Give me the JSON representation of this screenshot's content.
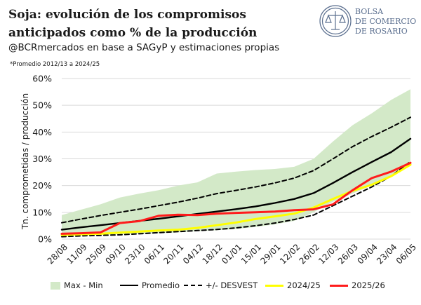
{
  "header": {
    "title": "Soja: evolución de los compromisos anticipados como % de la producción",
    "subtitle": "@BCRmercados en base a SAGyP y estimaciones propias",
    "note": "*Promedio 2012/13 a 2024/25"
  },
  "logo": {
    "line1": "BOLSA",
    "line2": "DE COMERCIO",
    "line3": "DE ROSARIO",
    "color": "#5b6f8f"
  },
  "chart_data": {
    "type": "line",
    "ylabel": "Tn. comprometidas / producción",
    "xlabel": "",
    "ylim": [
      0,
      0.6
    ],
    "yticks": [
      0,
      0.1,
      0.2,
      0.3,
      0.4,
      0.5,
      0.6
    ],
    "ytick_labels": [
      "0%",
      "10%",
      "20%",
      "30%",
      "40%",
      "50%",
      "60%"
    ],
    "grid": true,
    "legend_position": "bottom",
    "categories": [
      "28/08",
      "11/09",
      "25/09",
      "09/10",
      "23/10",
      "06/11",
      "20/11",
      "04/12",
      "18/12",
      "01/01",
      "15/01",
      "29/01",
      "12/02",
      "26/02",
      "12/03",
      "26/03",
      "09/04",
      "23/04",
      "06/05"
    ],
    "band": {
      "name": "Max - Min",
      "color": "#d3e9c8",
      "max": [
        0.09,
        0.11,
        0.13,
        0.155,
        0.17,
        0.183,
        0.2,
        0.212,
        0.245,
        0.252,
        0.258,
        0.262,
        0.27,
        0.3,
        0.365,
        0.425,
        0.47,
        0.52,
        0.56
      ],
      "min": [
        0.012,
        0.014,
        0.016,
        0.018,
        0.02,
        0.022,
        0.025,
        0.03,
        0.033,
        0.038,
        0.045,
        0.055,
        0.068,
        0.1,
        0.14,
        0.17,
        0.2,
        0.24,
        0.28
      ]
    },
    "series": [
      {
        "name": "Promedio",
        "color": "#000000",
        "style": "solid",
        "values": [
          0.035,
          0.044,
          0.052,
          0.06,
          0.068,
          0.076,
          0.085,
          0.094,
          0.103,
          0.112,
          0.122,
          0.135,
          0.15,
          0.172,
          0.21,
          0.25,
          0.288,
          0.325,
          0.375
        ]
      },
      {
        "name": "+/- DESVEST",
        "color": "#000000",
        "style": "dashed",
        "values": [
          0.061,
          0.075,
          0.088,
          0.1,
          0.112,
          0.125,
          0.138,
          0.153,
          0.17,
          0.182,
          0.195,
          0.21,
          0.228,
          0.256,
          0.3,
          0.345,
          0.383,
          0.418,
          0.455
        ]
      },
      {
        "name": "+/- DESVEST (inferior)",
        "color": "#000000",
        "style": "dashed",
        "legend": false,
        "values": [
          0.009,
          0.012,
          0.014,
          0.016,
          0.02,
          0.024,
          0.028,
          0.032,
          0.036,
          0.042,
          0.05,
          0.06,
          0.073,
          0.09,
          0.125,
          0.16,
          0.195,
          0.235,
          0.29
        ]
      },
      {
        "name": "2024/25",
        "color": "#ffff00",
        "style": "solid",
        "values": [
          0.015,
          0.018,
          0.02,
          0.024,
          0.028,
          0.032,
          0.035,
          0.042,
          0.052,
          0.062,
          0.075,
          0.085,
          0.095,
          0.118,
          0.15,
          0.18,
          0.203,
          0.235,
          0.278
        ]
      },
      {
        "name": "2025/26",
        "color": "#ff1c1c",
        "style": "solid",
        "values": [
          0.02,
          0.022,
          0.025,
          0.06,
          0.067,
          0.087,
          0.091,
          0.09,
          0.095,
          0.098,
          0.1,
          0.103,
          0.108,
          0.111,
          0.13,
          0.182,
          0.228,
          0.252,
          0.285
        ]
      }
    ]
  },
  "legend": [
    "Max - Min",
    "Promedio",
    "+/- DESVEST",
    "2024/25",
    "2025/26"
  ]
}
